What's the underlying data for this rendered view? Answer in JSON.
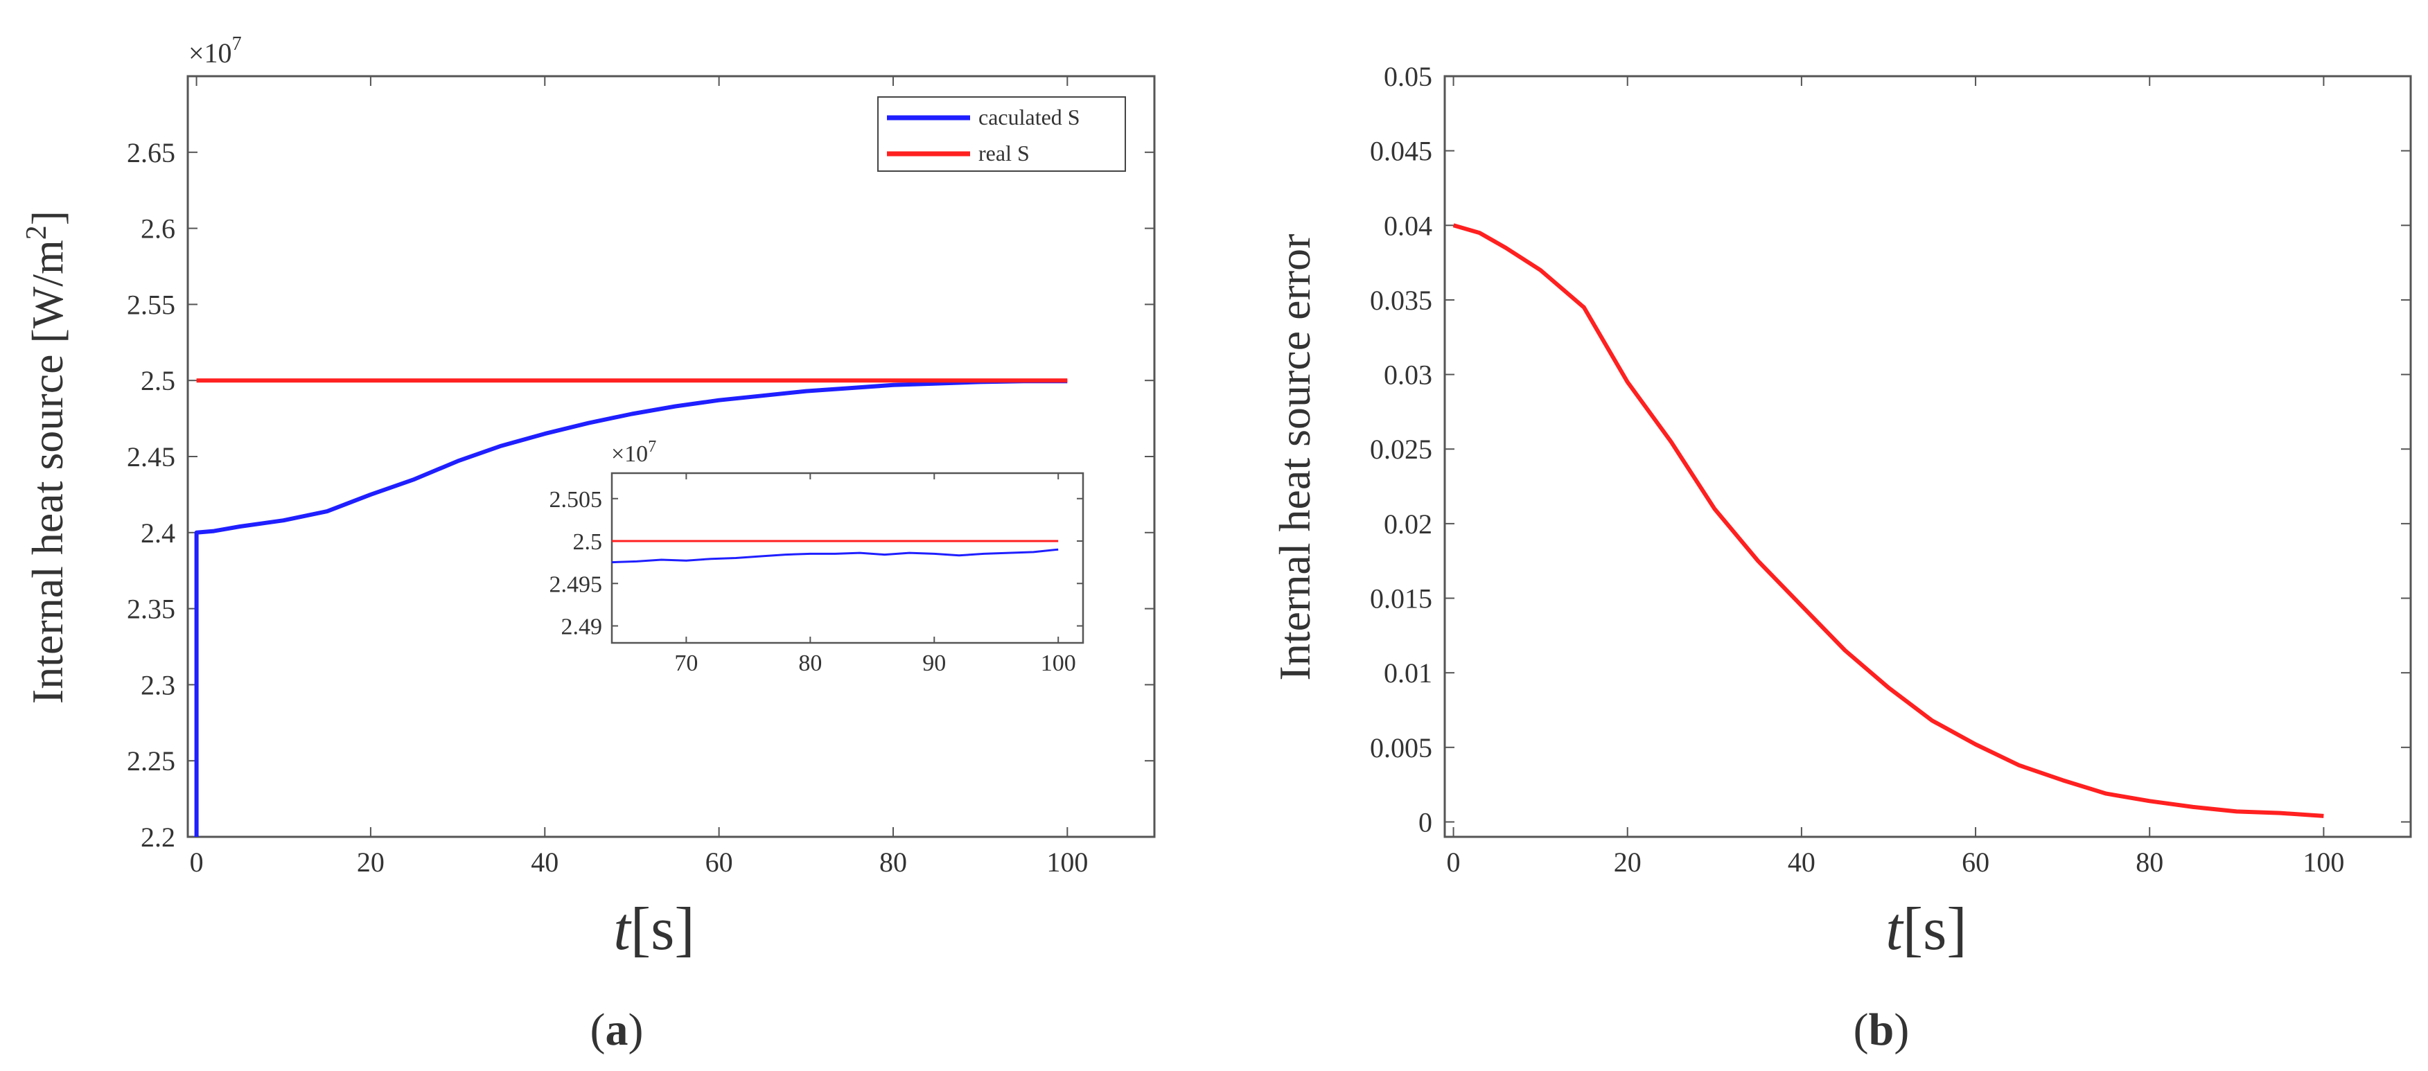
{
  "chart_data": [
    {
      "panel": "(a)",
      "type": "line",
      "ylabel": "Internal heat source [W/m",
      "ylabel_sup": "2",
      "ylabel_close": "]",
      "xlabel_italic": "t",
      "xlabel_unit": "[s]",
      "exponent_base": "×10",
      "exponent_power": "7",
      "xlim": [
        -1,
        110
      ],
      "ylim": [
        2.2,
        2.7
      ],
      "xticks": [
        0,
        20,
        40,
        60,
        80,
        100
      ],
      "xtick_labels": [
        "0",
        "20",
        "40",
        "60",
        "80",
        "100"
      ],
      "yticks": [
        2.2,
        2.25,
        2.3,
        2.35,
        2.4,
        2.45,
        2.5,
        2.55,
        2.6,
        2.65
      ],
      "ytick_labels": [
        "2.2",
        "2.25",
        "2.3",
        "2.35",
        "2.4",
        "2.45",
        "2.5",
        "2.55",
        "2.6",
        "2.65"
      ],
      "legend": {
        "position": "top-right",
        "entries": [
          "caculated S",
          "real S"
        ]
      },
      "series": [
        {
          "name": "caculated S",
          "color": "#1f1fff",
          "x": [
            0,
            0,
            2,
            5,
            10,
            15,
            20,
            25,
            30,
            35,
            40,
            45,
            50,
            55,
            60,
            65,
            70,
            75,
            80,
            85,
            90,
            95,
            100
          ],
          "y": [
            2.2,
            2.4,
            2.401,
            2.404,
            2.408,
            2.414,
            2.425,
            2.435,
            2.447,
            2.457,
            2.465,
            2.472,
            2.478,
            2.483,
            2.487,
            2.49,
            2.493,
            2.495,
            2.497,
            2.498,
            2.499,
            2.4995,
            2.4995
          ]
        },
        {
          "name": "real S",
          "color": "#ff2020",
          "x": [
            0,
            100
          ],
          "y": [
            2.5,
            2.5
          ]
        }
      ],
      "inset": {
        "exponent_base": "×10",
        "exponent_power": "7",
        "xlim": [
          64,
          102
        ],
        "ylim": [
          2.488,
          2.508
        ],
        "xticks": [
          70,
          80,
          90,
          100
        ],
        "xtick_labels": [
          "70",
          "80",
          "90",
          "100"
        ],
        "yticks": [
          2.49,
          2.495,
          2.5,
          2.505
        ],
        "ytick_labels": [
          "2.49",
          "2.495",
          "2.5",
          "2.505"
        ],
        "series": [
          {
            "name": "caculated S",
            "color": "#1f1fff",
            "x": [
              64,
              66,
              68,
              70,
              72,
              74,
              76,
              78,
              80,
              82,
              84,
              86,
              88,
              90,
              92,
              94,
              96,
              98,
              100
            ],
            "y": [
              2.4975,
              2.4976,
              2.4978,
              2.4977,
              2.4979,
              2.498,
              2.4982,
              2.4984,
              2.4985,
              2.4985,
              2.4986,
              2.4984,
              2.4986,
              2.4985,
              2.4983,
              2.4985,
              2.4986,
              2.4987,
              2.499
            ]
          },
          {
            "name": "real S",
            "color": "#ff2020",
            "x": [
              64,
              100
            ],
            "y": [
              2.5,
              2.5
            ]
          }
        ]
      }
    },
    {
      "panel": "(b)",
      "type": "line",
      "ylabel": "Internal heat source error",
      "xlabel_italic": "t",
      "xlabel_unit": "[s]",
      "xlim": [
        -1,
        110
      ],
      "ylim": [
        -0.001,
        0.05
      ],
      "xticks": [
        0,
        20,
        40,
        60,
        80,
        100
      ],
      "xtick_labels": [
        "0",
        "20",
        "40",
        "60",
        "80",
        "100"
      ],
      "yticks": [
        0,
        0.005,
        0.01,
        0.015,
        0.02,
        0.025,
        0.03,
        0.035,
        0.04,
        0.045,
        0.05
      ],
      "ytick_labels": [
        "0",
        "0.005",
        "0.01",
        "0.015",
        "0.02",
        "0.025",
        "0.03",
        "0.035",
        "0.04",
        "0.045",
        "0.05"
      ],
      "series": [
        {
          "name": "error",
          "color": "#ff2020",
          "x": [
            0,
            3,
            6,
            10,
            15,
            20,
            25,
            30,
            35,
            40,
            45,
            50,
            55,
            60,
            65,
            70,
            75,
            80,
            85,
            90,
            95,
            100
          ],
          "y": [
            0.04,
            0.0395,
            0.0385,
            0.037,
            0.0345,
            0.0295,
            0.0255,
            0.021,
            0.0175,
            0.0145,
            0.0115,
            0.009,
            0.0068,
            0.0052,
            0.0038,
            0.0028,
            0.0019,
            0.0014,
            0.001,
            0.0007,
            0.0006,
            0.0004
          ]
        }
      ]
    }
  ],
  "panel_labels": {
    "a": "a",
    "b": "b"
  }
}
